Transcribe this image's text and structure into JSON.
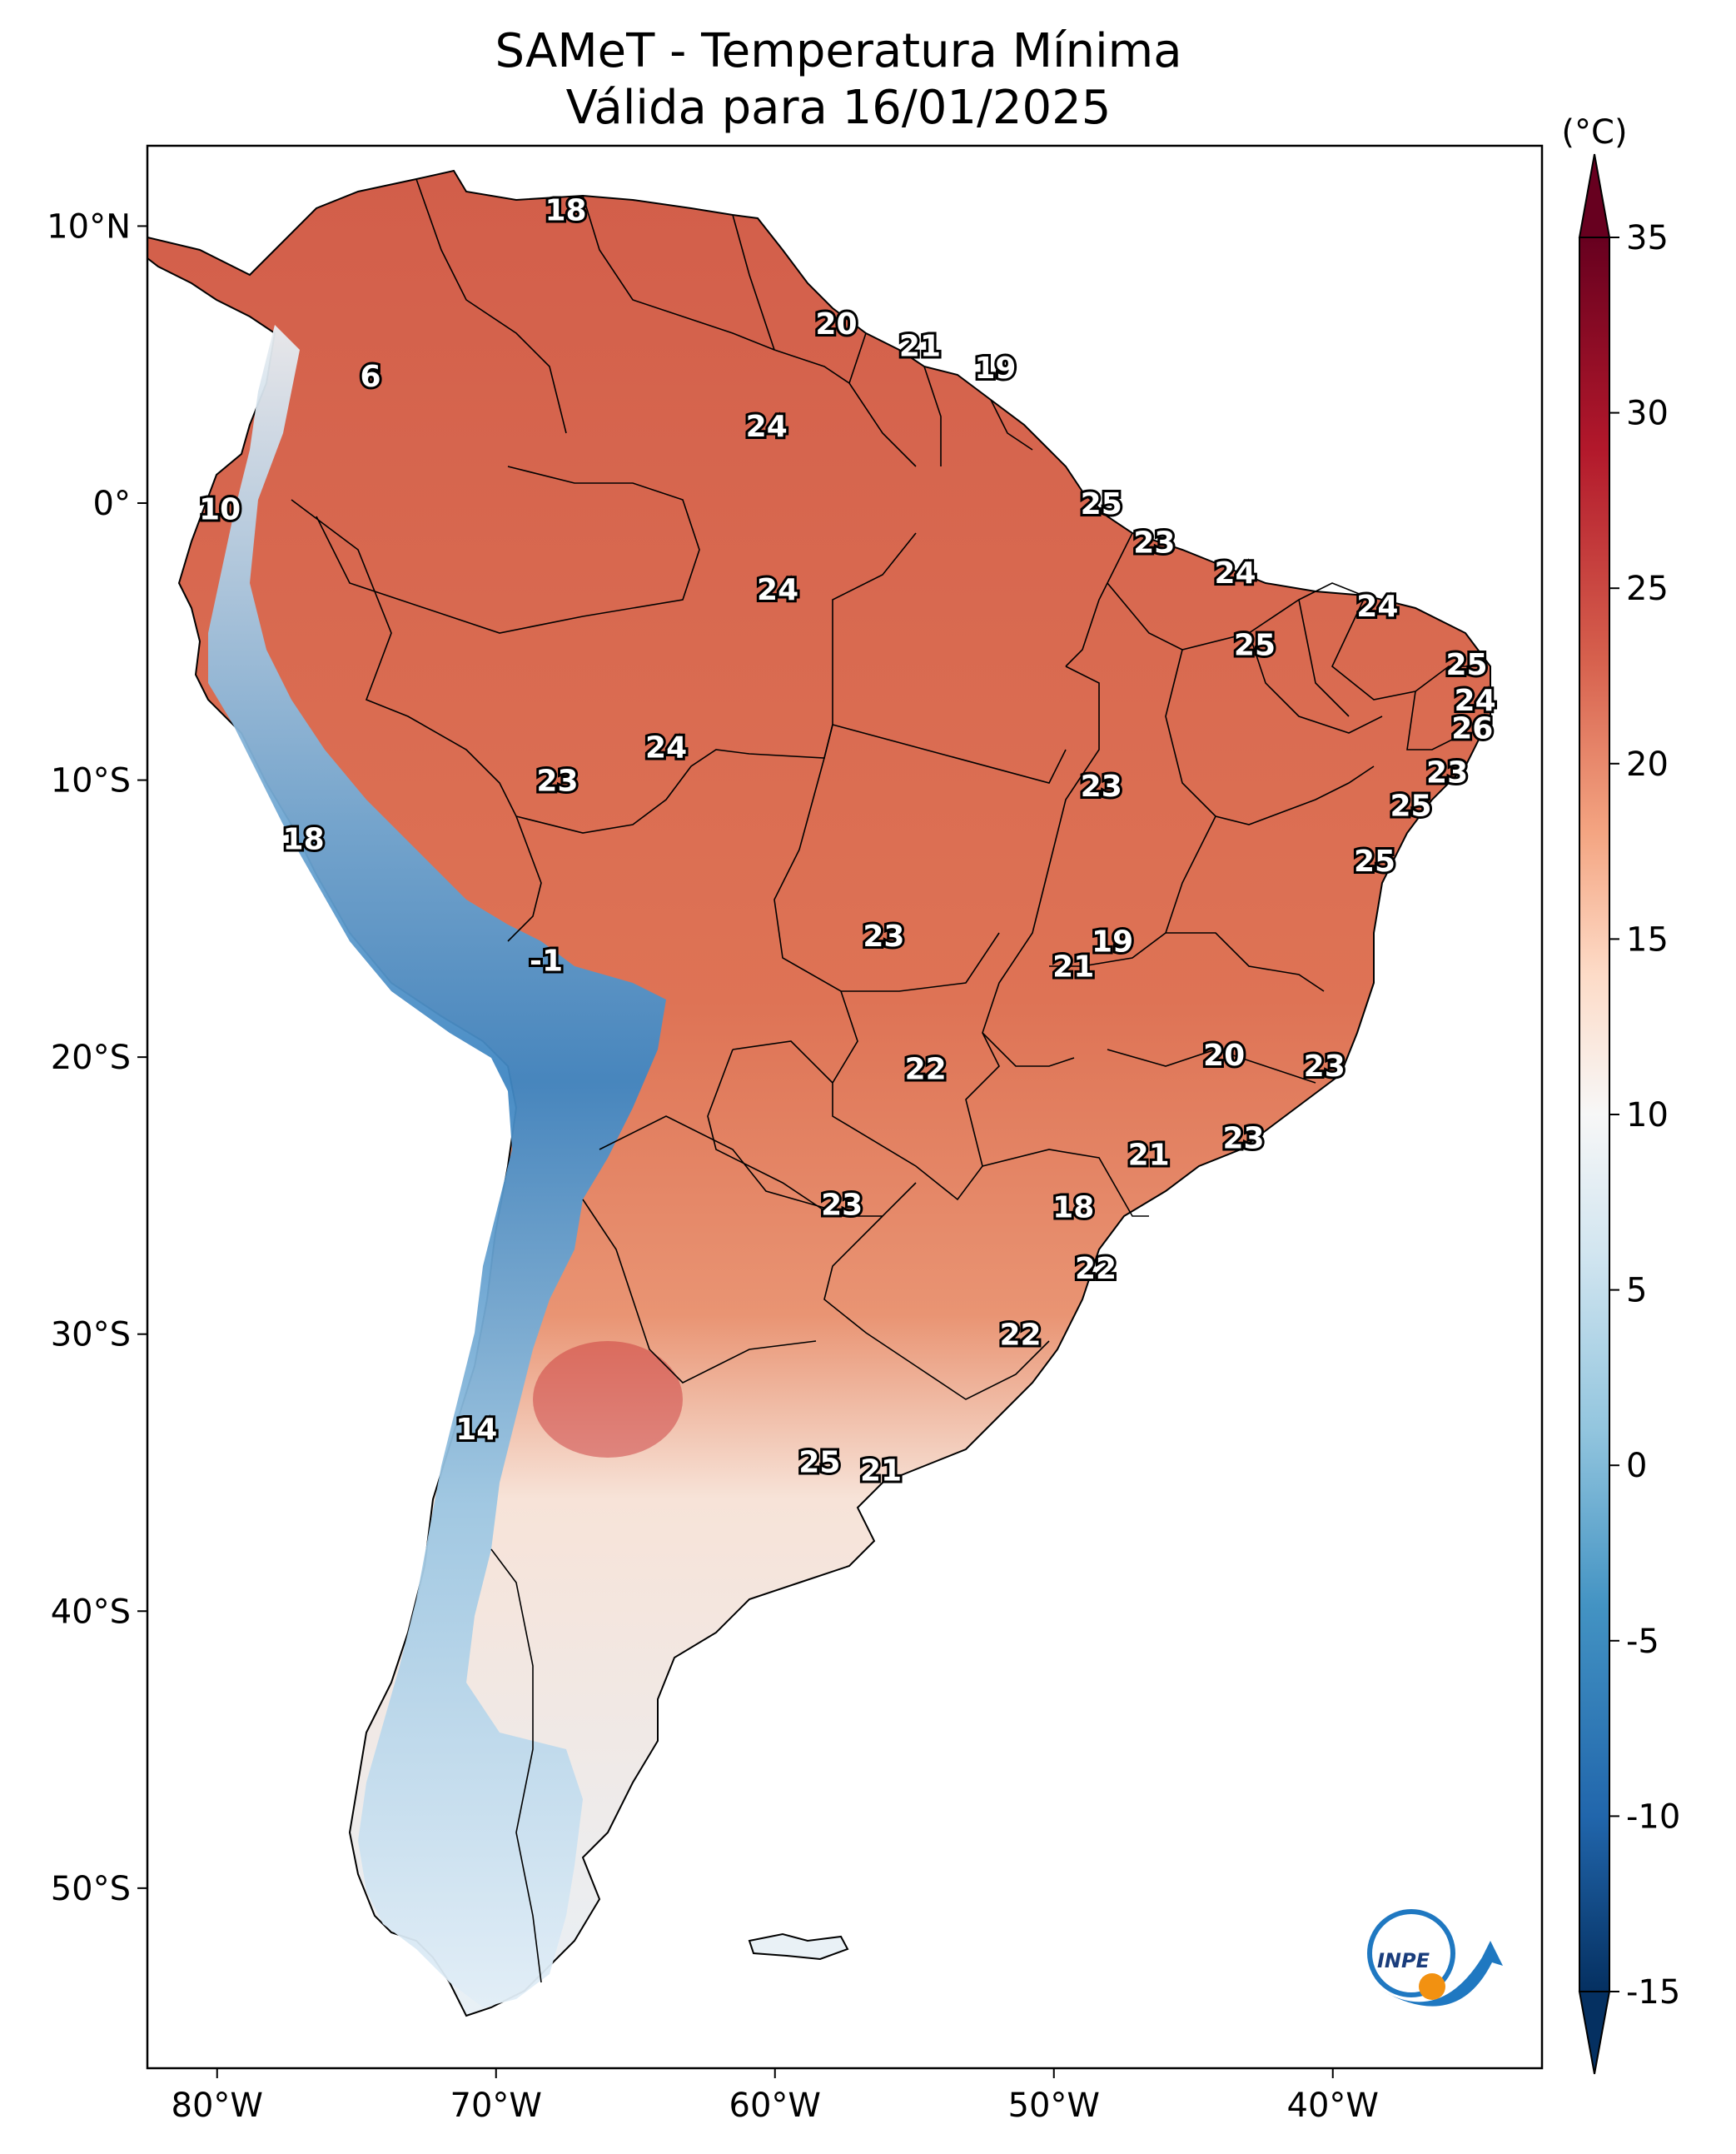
{
  "title": {
    "line1": "SAMeT - Temperatura Mínima",
    "line2": "Válida para 16/01/2025"
  },
  "map": {
    "lon_range": [
      -82.5,
      -32.5
    ],
    "lat_range": [
      -56.5,
      12.9
    ],
    "lon_ticks": [
      {
        "value": -80,
        "label": "80°W"
      },
      {
        "value": -70,
        "label": "70°W"
      },
      {
        "value": -60,
        "label": "60°W"
      },
      {
        "value": -50,
        "label": "50°W"
      },
      {
        "value": -40,
        "label": "40°W"
      }
    ],
    "lat_ticks": [
      {
        "value": 10,
        "label": "10°N"
      },
      {
        "value": 0,
        "label": "0°"
      },
      {
        "value": -10,
        "label": "10°S"
      },
      {
        "value": -20,
        "label": "20°S"
      },
      {
        "value": -30,
        "label": "30°S"
      },
      {
        "value": -40,
        "label": "40°S"
      },
      {
        "value": -50,
        "label": "50°S"
      }
    ]
  },
  "colorbar": {
    "unit": "(°C)",
    "min": -15,
    "max": 35,
    "ticks": [
      {
        "value": 35,
        "label": "35"
      },
      {
        "value": 30,
        "label": "30"
      },
      {
        "value": 25,
        "label": "25"
      },
      {
        "value": 20,
        "label": "20"
      },
      {
        "value": 15,
        "label": "15"
      },
      {
        "value": 10,
        "label": "10"
      },
      {
        "value": 5,
        "label": "5"
      },
      {
        "value": 0,
        "label": "0"
      },
      {
        "value": -5,
        "label": "-5"
      },
      {
        "value": -10,
        "label": "-10"
      },
      {
        "value": -15,
        "label": "-15"
      }
    ],
    "colors": [
      "#053061",
      "#2166ac",
      "#4393c3",
      "#92c5de",
      "#d1e5f0",
      "#f7f7f7",
      "#fddbc7",
      "#f4a582",
      "#d6604d",
      "#b2182b",
      "#67001f"
    ]
  },
  "station_values": [
    {
      "lon": -67.5,
      "lat": 10.6,
      "label": "18"
    },
    {
      "lon": -57.8,
      "lat": 6.5,
      "label": "20"
    },
    {
      "lon": -54.8,
      "lat": 5.7,
      "label": "21"
    },
    {
      "lon": -52.1,
      "lat": 4.9,
      "label": "19"
    },
    {
      "lon": -74.5,
      "lat": 4.6,
      "label": "6"
    },
    {
      "lon": -60.3,
      "lat": 2.8,
      "label": "24"
    },
    {
      "lon": -48.3,
      "lat": 0.0,
      "label": "25"
    },
    {
      "lon": -79.9,
      "lat": -0.2,
      "label": "10"
    },
    {
      "lon": -46.4,
      "lat": -1.4,
      "label": "23"
    },
    {
      "lon": -59.9,
      "lat": -3.1,
      "label": "24"
    },
    {
      "lon": -43.5,
      "lat": -2.5,
      "label": "24"
    },
    {
      "lon": -38.4,
      "lat": -3.7,
      "label": "24"
    },
    {
      "lon": -42.8,
      "lat": -5.1,
      "label": "25"
    },
    {
      "lon": -35.2,
      "lat": -5.8,
      "label": "25"
    },
    {
      "lon": -34.9,
      "lat": -7.1,
      "label": "24"
    },
    {
      "lon": -35.0,
      "lat": -8.1,
      "label": "26"
    },
    {
      "lon": -63.9,
      "lat": -8.8,
      "label": "24"
    },
    {
      "lon": -35.9,
      "lat": -9.7,
      "label": "23"
    },
    {
      "lon": -67.8,
      "lat": -10.0,
      "label": "23"
    },
    {
      "lon": -48.3,
      "lat": -10.2,
      "label": "23"
    },
    {
      "lon": -37.2,
      "lat": -10.9,
      "label": "25"
    },
    {
      "lon": -76.9,
      "lat": -12.1,
      "label": "18"
    },
    {
      "lon": -38.5,
      "lat": -12.9,
      "label": "25"
    },
    {
      "lon": -56.1,
      "lat": -15.6,
      "label": "23"
    },
    {
      "lon": -47.9,
      "lat": -15.8,
      "label": "19"
    },
    {
      "lon": -49.3,
      "lat": -16.7,
      "label": "21"
    },
    {
      "lon": -68.2,
      "lat": -16.5,
      "label": "-1"
    },
    {
      "lon": -43.9,
      "lat": -19.9,
      "label": "20"
    },
    {
      "lon": -54.6,
      "lat": -20.4,
      "label": "22"
    },
    {
      "lon": -40.3,
      "lat": -20.3,
      "label": "23"
    },
    {
      "lon": -43.2,
      "lat": -22.9,
      "label": "23"
    },
    {
      "lon": -46.6,
      "lat": -23.5,
      "label": "21"
    },
    {
      "lon": -57.6,
      "lat": -25.3,
      "label": "23"
    },
    {
      "lon": -49.3,
      "lat": -25.4,
      "label": "18"
    },
    {
      "lon": -48.5,
      "lat": -27.6,
      "label": "22"
    },
    {
      "lon": -51.2,
      "lat": -30.0,
      "label": "22"
    },
    {
      "lon": -70.7,
      "lat": -33.4,
      "label": "14"
    },
    {
      "lon": -58.4,
      "lat": -34.6,
      "label": "25"
    },
    {
      "lon": -56.2,
      "lat": -34.9,
      "label": "21"
    }
  ]
}
